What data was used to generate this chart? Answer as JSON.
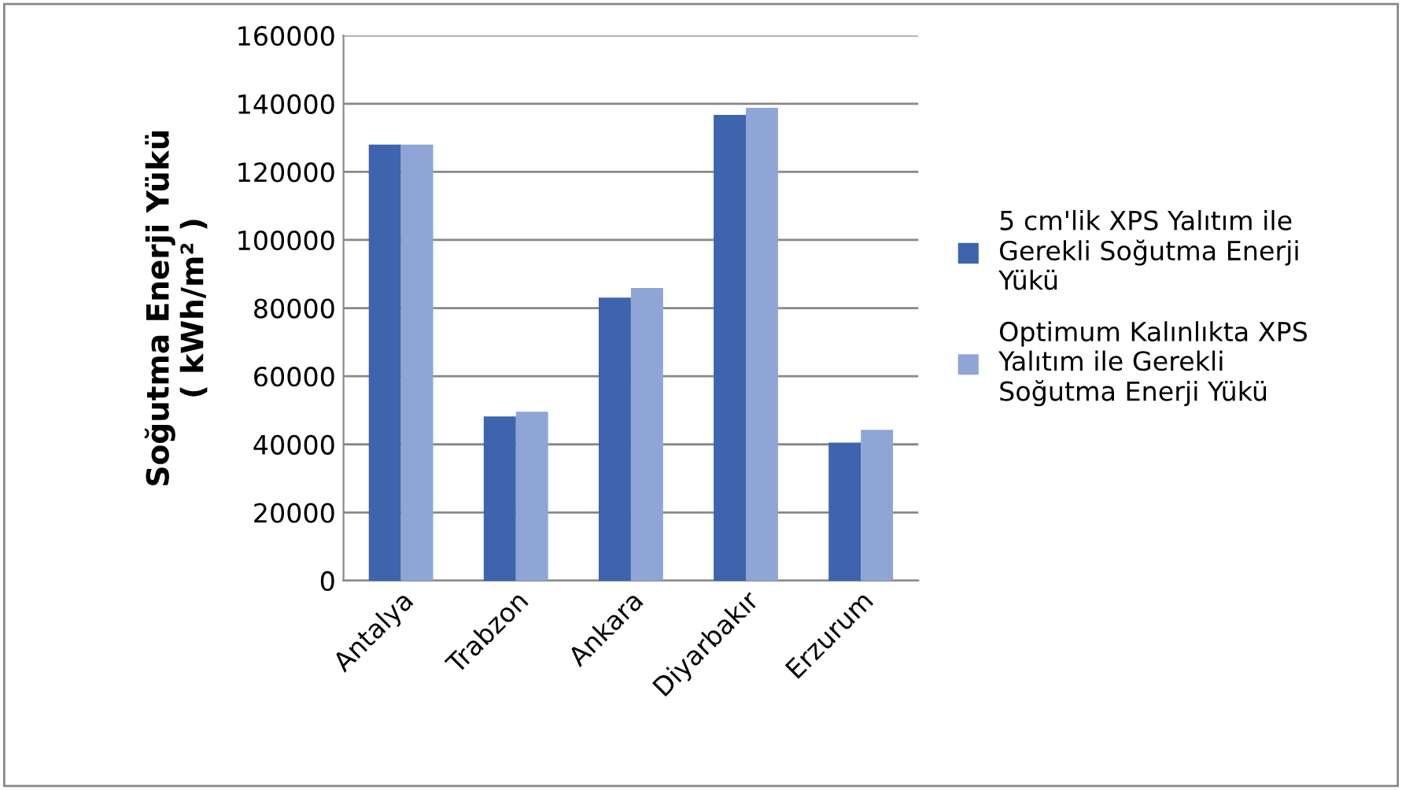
{
  "chart_data": {
    "type": "bar",
    "ylabel": "Soğutma Enerji Yükü\n( kWh/m² )",
    "categories": [
      "Antalya",
      "Trabzon",
      "Ankara",
      "Diyarbakır",
      "Erzurum"
    ],
    "series": [
      {
        "name": "5 cm'lik XPS Yalıtım ile Gerekli Soğutma Enerji Yükü",
        "color": "#3d64ad",
        "values": [
          128000,
          48200,
          83100,
          136700,
          40500
        ]
      },
      {
        "name": "Optimum Kalınlıkta XPS Yalıtım ile Gerekli Soğutma Enerji Yükü",
        "color": "#8fa5d5",
        "values": [
          128000,
          49600,
          85900,
          138800,
          44300
        ]
      }
    ],
    "ylim": [
      0,
      160000
    ],
    "yticks": [
      0,
      20000,
      40000,
      60000,
      80000,
      100000,
      120000,
      140000,
      160000
    ],
    "grid": "y",
    "legend": "right"
  }
}
